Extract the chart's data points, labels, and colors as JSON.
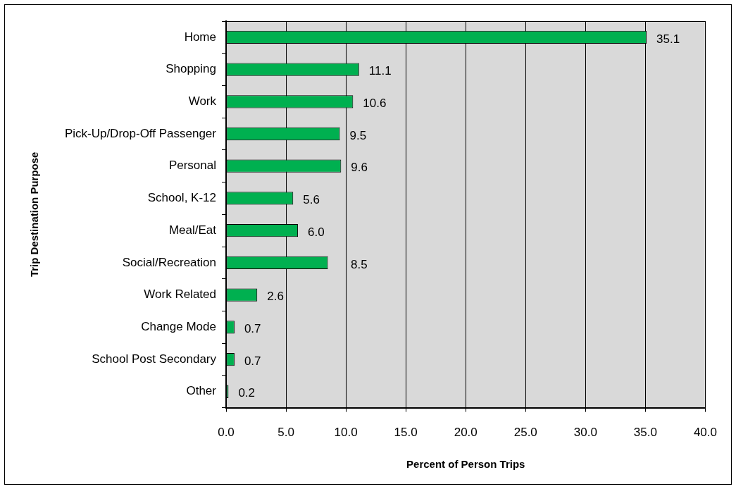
{
  "chart_data": {
    "type": "bar",
    "orientation": "horizontal",
    "xlabel": "Percent of Person Trips",
    "ylabel": "Trip Destination Purpose",
    "categories": [
      "Home",
      "Shopping",
      "Work",
      "Pick-Up/Drop-Off Passenger",
      "Personal",
      "School, K-12",
      "Meal/Eat",
      "Social/Recreation",
      "Work Related",
      "Change Mode",
      "School Post Secondary",
      "Other"
    ],
    "values": [
      35.1,
      11.1,
      10.6,
      9.5,
      9.6,
      5.6,
      6.0,
      8.5,
      2.6,
      0.7,
      0.7,
      0.2
    ],
    "value_labels": [
      "35.1",
      "11.1",
      "10.6",
      "9.5",
      "9.6",
      "5.6",
      "6.0",
      "8.5",
      "2.6",
      "0.7",
      "0.7",
      "0.2"
    ],
    "color": "#00b050",
    "xlim": [
      0,
      40
    ],
    "xticks": [
      {
        "value": 0,
        "label": "0.0"
      },
      {
        "value": 5,
        "label": "5.0"
      },
      {
        "value": 10,
        "label": "10.0"
      },
      {
        "value": 15,
        "label": "15.0"
      },
      {
        "value": 20,
        "label": "20.0"
      },
      {
        "value": 25,
        "label": "25.0"
      },
      {
        "value": 30,
        "label": "30.0"
      },
      {
        "value": 35,
        "label": "35.0"
      },
      {
        "value": 40,
        "label": "40.0"
      }
    ],
    "grid": "x"
  }
}
